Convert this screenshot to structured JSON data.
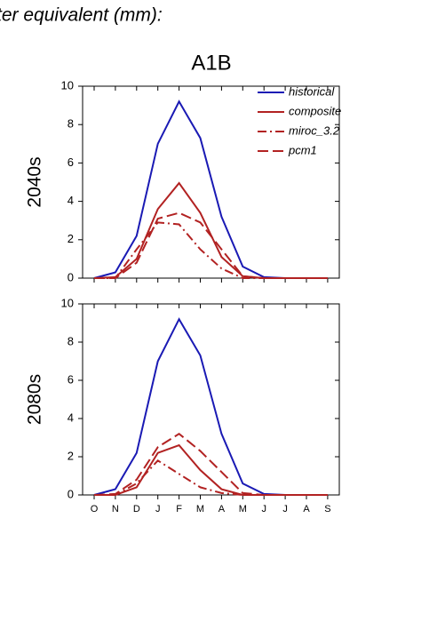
{
  "header": "ter equivalent (mm):",
  "chart_data": [
    {
      "type": "line",
      "title": "A1B",
      "ylabel": "2040s",
      "categories": [
        null,
        null,
        null,
        null,
        null,
        null,
        null,
        null,
        null,
        null,
        null,
        null
      ],
      "ylim": [
        0,
        10
      ],
      "yticks": [
        0,
        2,
        4,
        6,
        8,
        10
      ],
      "legend": "top-right",
      "series": [
        {
          "name": "historical",
          "color": "#1a1ab4",
          "dash": "solid",
          "values": [
            0,
            0.3,
            2.2,
            7.0,
            9.2,
            7.3,
            3.2,
            0.6,
            0.05,
            0,
            0,
            0
          ]
        },
        {
          "name": "composite",
          "color": "#b22222",
          "dash": "solid",
          "values": [
            0,
            0.05,
            1.0,
            3.6,
            4.95,
            3.4,
            1.1,
            0.1,
            0,
            0,
            0,
            0
          ]
        },
        {
          "name": "miroc_3.2",
          "color": "#b22222",
          "dash": "dashdot",
          "values": [
            0,
            0,
            1.5,
            2.9,
            2.8,
            1.5,
            0.5,
            0,
            0,
            0,
            0,
            0
          ]
        },
        {
          "name": "pcm1",
          "color": "#b22222",
          "dash": "dash",
          "values": [
            0,
            0,
            0.8,
            3.1,
            3.4,
            2.9,
            1.5,
            0.1,
            0,
            0,
            0,
            0
          ]
        }
      ]
    },
    {
      "type": "line",
      "ylabel": "2080s",
      "categories": [
        "O",
        "N",
        "D",
        "J",
        "F",
        "M",
        "A",
        "M",
        "J",
        "J",
        "A",
        "S"
      ],
      "ylim": [
        0,
        10
      ],
      "yticks": [
        0,
        2,
        4,
        6,
        8,
        10
      ],
      "series": [
        {
          "color": "#1a1ab4",
          "dash": "solid",
          "values": [
            0,
            0.3,
            2.2,
            7.0,
            9.2,
            7.3,
            3.2,
            0.6,
            0.05,
            0,
            0,
            0
          ]
        },
        {
          "color": "#b22222",
          "dash": "solid",
          "values": [
            0,
            0,
            0.4,
            2.2,
            2.6,
            1.3,
            0.3,
            0,
            0,
            0,
            0,
            0
          ]
        },
        {
          "color": "#b22222",
          "dash": "dashdot",
          "values": [
            0,
            0,
            0.6,
            1.8,
            1.1,
            0.4,
            0.1,
            0,
            0,
            0,
            0,
            0
          ]
        },
        {
          "color": "#b22222",
          "dash": "dash",
          "values": [
            0,
            0.05,
            0.8,
            2.5,
            3.2,
            2.3,
            1.2,
            0.1,
            0,
            0,
            0,
            0
          ]
        }
      ]
    }
  ]
}
